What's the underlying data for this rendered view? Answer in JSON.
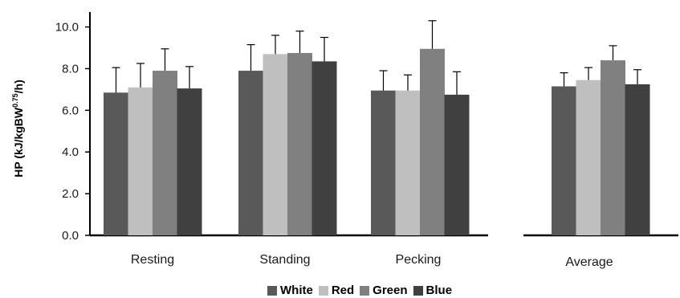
{
  "chart_data": {
    "type": "bar",
    "title": "",
    "ylabel_main": "HP (kJ/kgBW",
    "ylabel_sup": "0.75",
    "ylabel_tail": "/h)",
    "ylim": [
      0,
      10.6
    ],
    "yticks": [
      "0.0",
      "2.0",
      "4.0",
      "6.0",
      "8.0",
      "10.0"
    ],
    "error_bars": true,
    "grid": false,
    "legend_position": "bottom",
    "panels": [
      {
        "categories": [
          "Resting",
          "Standing",
          "Pecking"
        ],
        "series": [
          {
            "name": "White",
            "values": [
              6.85,
              7.9,
              6.95
            ],
            "errors": [
              1.2,
              1.25,
              0.95
            ]
          },
          {
            "name": "Red",
            "values": [
              7.1,
              8.7,
              6.95
            ],
            "errors": [
              1.15,
              0.9,
              0.75
            ]
          },
          {
            "name": "Green",
            "values": [
              7.9,
              8.75,
              8.95
            ],
            "errors": [
              1.05,
              1.05,
              1.35
            ]
          },
          {
            "name": "Blue",
            "values": [
              7.05,
              8.35,
              6.75
            ],
            "errors": [
              1.05,
              1.15,
              1.1
            ]
          }
        ]
      },
      {
        "categories": [
          "Average"
        ],
        "series": [
          {
            "name": "White",
            "values": [
              7.15
            ],
            "errors": [
              0.65
            ]
          },
          {
            "name": "Red",
            "values": [
              7.45
            ],
            "errors": [
              0.6
            ]
          },
          {
            "name": "Green",
            "values": [
              8.4
            ],
            "errors": [
              0.7
            ]
          },
          {
            "name": "Blue",
            "values": [
              7.25
            ],
            "errors": [
              0.7
            ]
          }
        ]
      }
    ]
  },
  "colors": {
    "White": "#595959",
    "Red": "#bfbfbf",
    "Green": "#808080",
    "Blue": "#404040",
    "axis": "#000000"
  },
  "legend": [
    {
      "label": "White",
      "color": "#595959"
    },
    {
      "label": "Red",
      "color": "#bfbfbf"
    },
    {
      "label": "Green",
      "color": "#808080"
    },
    {
      "label": "Blue",
      "color": "#404040"
    }
  ]
}
